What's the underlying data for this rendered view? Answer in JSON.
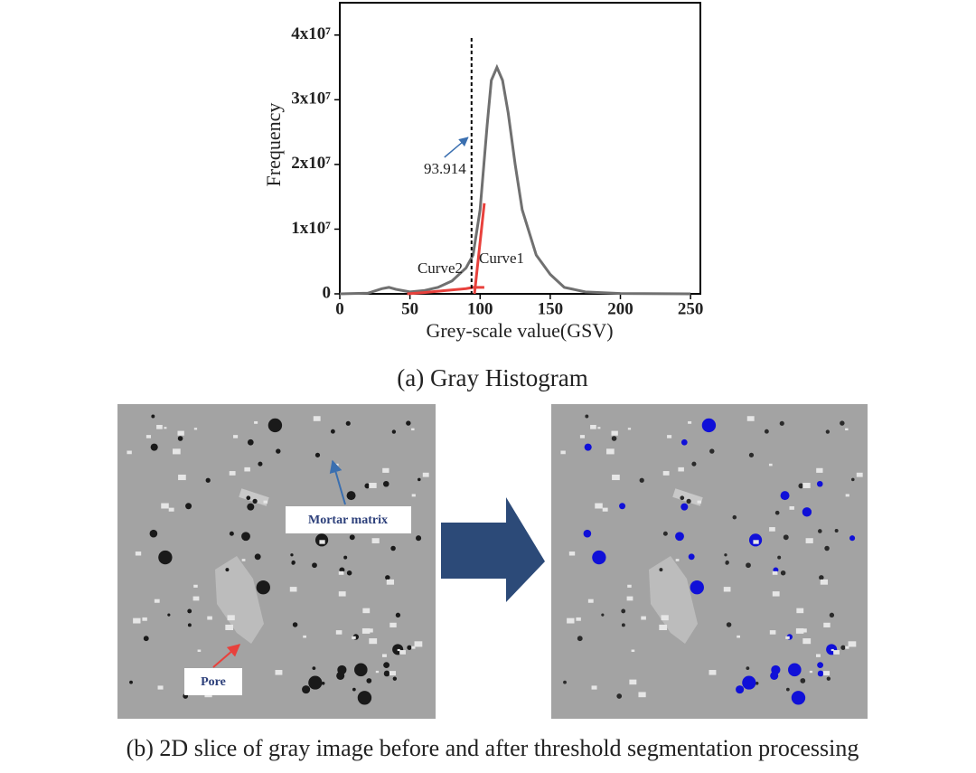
{
  "chart_data": {
    "type": "line",
    "title": "(a) Gray Histogram",
    "xlabel": "Grey-scale value(GSV)",
    "ylabel": "Frequency",
    "xlim": [
      0,
      257
    ],
    "ylim": [
      0,
      45000000
    ],
    "xticks": [
      0,
      50,
      100,
      150,
      200,
      250
    ],
    "yticks": [
      0,
      {
        "value": 10000000,
        "label": "1x10⁷"
      },
      {
        "value": 20000000,
        "label": "2x10⁷"
      },
      {
        "value": 30000000,
        "label": "3x10⁷"
      },
      {
        "value": 40000000,
        "label": "4x10⁷"
      }
    ],
    "threshold": 93.914,
    "series": [
      {
        "color": "#707070",
        "x": [
          0,
          20,
          30,
          35,
          40,
          50,
          60,
          70,
          80,
          90,
          95,
          100,
          105,
          108,
          112,
          116,
          120,
          125,
          130,
          140,
          150,
          160,
          175,
          200,
          250
        ],
        "values": [
          0,
          100000,
          800000,
          1000000,
          700000,
          300000,
          500000,
          1000000,
          2000000,
          4000000,
          6000000,
          13000000,
          26000000,
          33000000,
          35000000,
          33000000,
          28000000,
          20000000,
          13000000,
          6000000,
          3000000,
          1000000,
          300000,
          50000,
          0
        ]
      },
      {
        "name": "Curve1",
        "color": "#e8413c",
        "x": [
          96,
          98,
          100,
          102,
          103
        ],
        "values": [
          0,
          4000000,
          8000000,
          12000000,
          14000000
        ]
      },
      {
        "name": "Curve2",
        "color": "#e8413c",
        "x": [
          48,
          60,
          75,
          90,
          95,
          103
        ],
        "values": [
          0,
          200000,
          500000,
          800000,
          1000000,
          1000000
        ]
      }
    ]
  },
  "panel_b": {
    "caption": "(b) 2D slice of gray image before and after threshold segmentation processing",
    "labels": [
      "Mortar matrix",
      "Pore"
    ]
  }
}
